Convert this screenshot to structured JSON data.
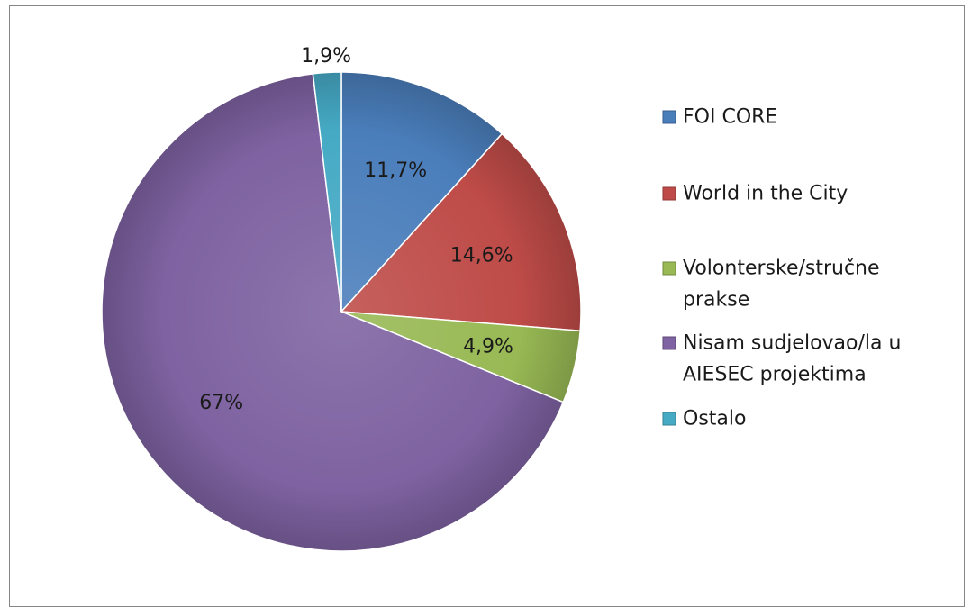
{
  "chart_data": {
    "type": "pie",
    "categories": [
      "FOI CORE",
      "World in the City",
      "Volonterske/stručne prakse",
      "Nisam sudjelovao/la u AIESEC projektima",
      "Ostalo"
    ],
    "legend_lines": [
      [
        "FOI CORE"
      ],
      [
        "World in the City"
      ],
      [
        "Volonterske/stručne",
        "prakse"
      ],
      [
        "Nisam sudjelovao/la u",
        "AIESEC projektima"
      ],
      [
        "Ostalo"
      ]
    ],
    "values": [
      11.7,
      14.6,
      4.9,
      67,
      1.9
    ],
    "value_labels": [
      "11,7%",
      "14,6%",
      "4,9%",
      "67%",
      "1,9%"
    ],
    "colors": [
      "#4a7ebb",
      "#be4b48",
      "#98b954",
      "#7e62a1",
      "#46aac5"
    ],
    "legend_position": "right",
    "title": "",
    "grid": false
  }
}
